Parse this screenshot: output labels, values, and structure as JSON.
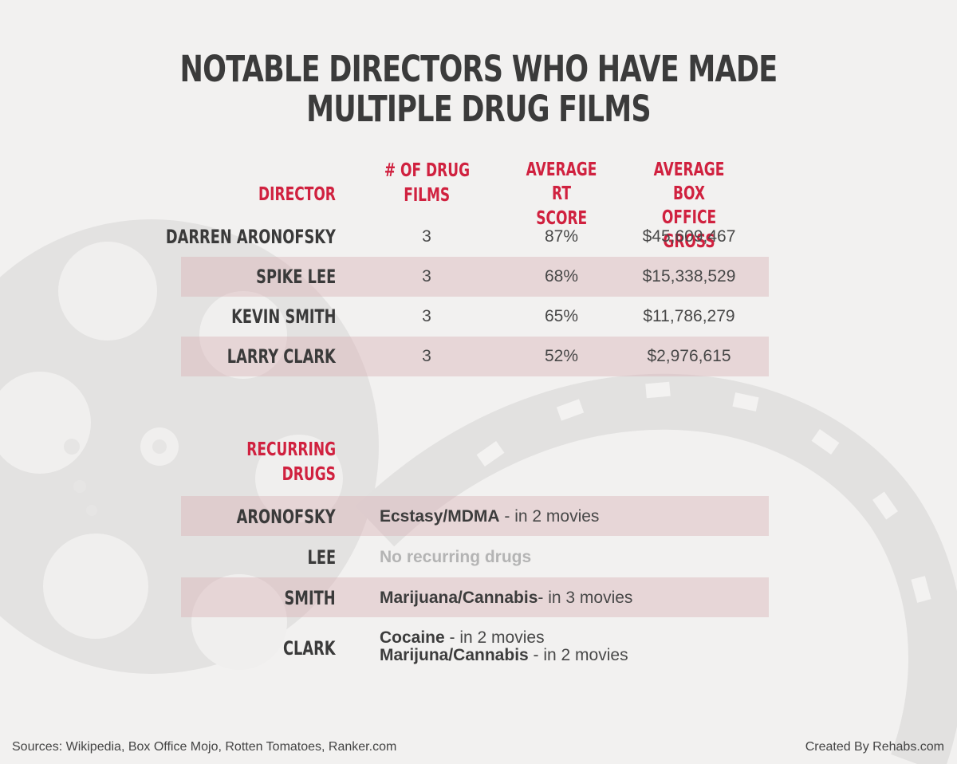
{
  "title": "NOTABLE DIRECTORS WHO HAVE MADE MULTIPLE DRUG FILMS",
  "chart_data": {
    "type": "table",
    "columns": {
      "director": "DIRECTOR",
      "films_line1": "# OF DRUG",
      "films_line2": "FILMS",
      "rt_line1": "AVERAGE RT",
      "rt_line2": "SCORE",
      "box_line1": "AVERAGE BOX",
      "box_line2": "OFFICE GROSS"
    },
    "rows": [
      {
        "director": "DARREN ARONOFSKY",
        "films": "3",
        "rt": "87%",
        "gross": "$45,609,467"
      },
      {
        "director": "SPIKE LEE",
        "films": "3",
        "rt": "68%",
        "gross": "$15,338,529"
      },
      {
        "director": "KEVIN SMITH",
        "films": "3",
        "rt": "65%",
        "gross": "$11,786,279"
      },
      {
        "director": "LARRY CLARK",
        "films": "3",
        "rt": "52%",
        "gross": "$2,976,615"
      }
    ],
    "films_values": [
      3,
      3,
      3,
      3
    ],
    "rt_values": [
      87,
      68,
      65,
      52
    ],
    "gross_values": [
      45609467,
      15338529,
      11786279,
      2976615
    ]
  },
  "recurring": {
    "header_line1": "RECURRING",
    "header_line2": "DRUGS",
    "aronofsky": {
      "name": "ARONOFSKY",
      "drug": "Ecstasy/MDMA",
      "note": " - in 2 movies"
    },
    "lee": {
      "name": "LEE",
      "text": "No recurring drugs"
    },
    "smith": {
      "name": "SMITH",
      "drug": "Marijuana/Cannabis",
      "note": "- in 3 movies"
    },
    "clark": {
      "name": "CLARK",
      "drug1": "Cocaine",
      "note1": " - in 2 movies",
      "drug2": "Marijuna/Cannabis",
      "note2": " - in 2 movies"
    }
  },
  "footer": {
    "sources": "Sources: Wikipedia, Box Office Mojo, Rotten Tomatoes, Ranker.com",
    "credit": "Created By Rehabs.com"
  },
  "colors": {
    "accent": "#d0213f",
    "title": "#3b3b3b",
    "band": "#e7d4d6",
    "background": "#f2f1f0"
  }
}
